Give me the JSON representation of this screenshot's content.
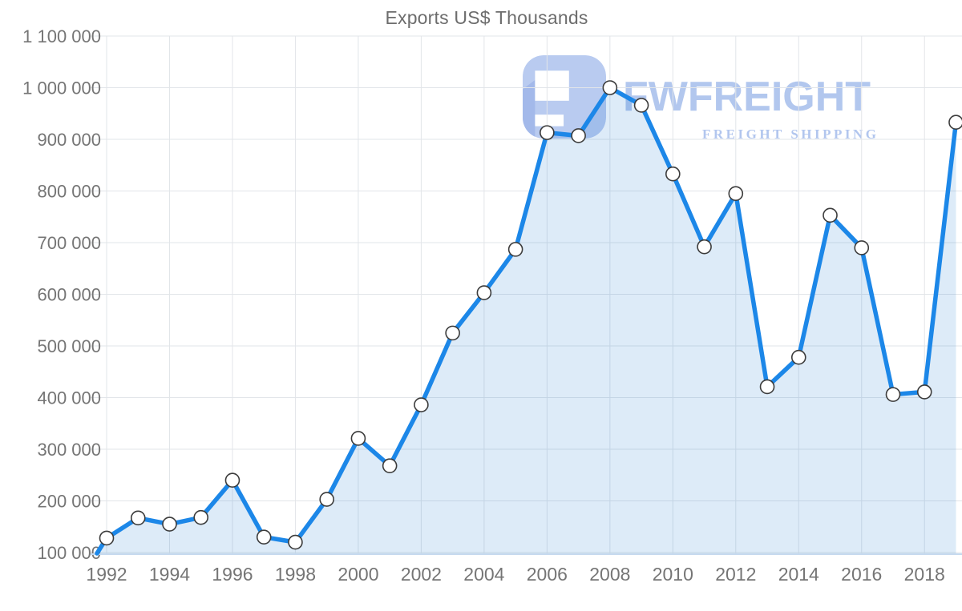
{
  "title": "Exports US$ Thousands",
  "watermark": {
    "brand": "FWFREIGHT",
    "tagline": "FREIGHT SHIPPING",
    "logo_icon": "fwfreight-logo-mark",
    "brand_color": "#a6beec",
    "logo_light": "#b6c9f0",
    "logo_dark": "#9fb6e9"
  },
  "colors": {
    "line": "#1c87e8",
    "area_fill": "rgba(25,118,210,0.15)",
    "marker_fill": "#ffffff",
    "marker_stroke": "#3c3c3c",
    "grid": "#e2e5e9",
    "axis_line": "#c5d9ee",
    "tick_text": "#757575",
    "title_text": "#6d6d6d"
  },
  "chart_data": {
    "type": "area",
    "title": "Exports US$ Thousands",
    "x": [
      1992,
      1993,
      1994,
      1995,
      1996,
      1997,
      1998,
      1999,
      2000,
      2001,
      2002,
      2003,
      2004,
      2005,
      2006,
      2007,
      2008,
      2009,
      2010,
      2011,
      2012,
      2013,
      2014,
      2015,
      2016,
      2017,
      2018,
      2019
    ],
    "values": [
      128000,
      167000,
      155000,
      168000,
      240000,
      130000,
      120000,
      203000,
      321000,
      268000,
      386000,
      525000,
      603000,
      687000,
      913000,
      907000,
      1000000,
      966000,
      833000,
      692000,
      795000,
      421000,
      478000,
      753000,
      690000,
      406000,
      411000,
      933000
    ],
    "ylim": [
      100000,
      1100000
    ],
    "ytick_step": 100000,
    "yticks": [
      100000,
      200000,
      300000,
      400000,
      500000,
      600000,
      700000,
      800000,
      900000,
      1000000,
      1100000
    ],
    "xticks": [
      1992,
      1994,
      1996,
      1998,
      2000,
      2002,
      2004,
      2006,
      2008,
      2010,
      2012,
      2014,
      2016,
      2018
    ],
    "grid": true,
    "legend": false,
    "markers": true,
    "leadin_from_axis_bottom": true
  }
}
